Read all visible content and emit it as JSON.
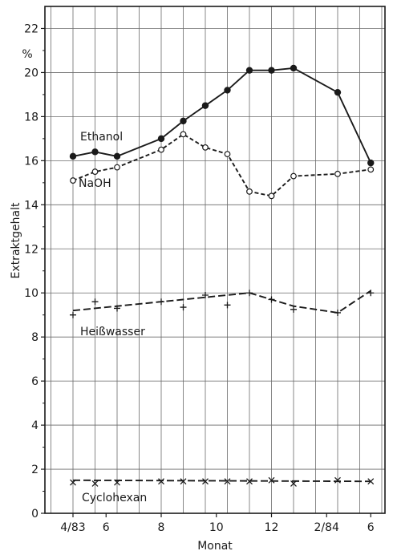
{
  "chart_data": {
    "type": "line",
    "xlabel": "Monat",
    "ylabel": "Extraktgehalt",
    "yunit": "%",
    "ylim": [
      0,
      23
    ],
    "yticks": [
      0,
      2,
      4,
      6,
      8,
      10,
      12,
      14,
      16,
      18,
      20,
      22
    ],
    "xlim": [
      0,
      15
    ],
    "xticks": [
      {
        "x": 1,
        "label": "4/83"
      },
      {
        "x": 2.5,
        "label": "6"
      },
      {
        "x": 5,
        "label": "8"
      },
      {
        "x": 7.5,
        "label": "10"
      },
      {
        "x": 10,
        "label": "12"
      },
      {
        "x": 12.5,
        "label": "2/84"
      },
      {
        "x": 14.5,
        "label": "6"
      }
    ],
    "grid": true,
    "series": [
      {
        "name": "Ethanol",
        "style": "solid",
        "marker": "filled-circle",
        "points": [
          {
            "x": 1,
            "y": 16.2
          },
          {
            "x": 2,
            "y": 16.4
          },
          {
            "x": 3,
            "y": 16.2
          },
          {
            "x": 5,
            "y": 17.0
          },
          {
            "x": 6,
            "y": 17.8
          },
          {
            "x": 7,
            "y": 18.5
          },
          {
            "x": 8,
            "y": 19.2
          },
          {
            "x": 9,
            "y": 20.1
          },
          {
            "x": 10,
            "y": 20.1
          },
          {
            "x": 11,
            "y": 20.2
          },
          {
            "x": 13,
            "y": 19.1
          },
          {
            "x": 14.5,
            "y": 15.9
          }
        ]
      },
      {
        "name": "NaOH",
        "style": "dashed",
        "marker": "open-circle",
        "points": [
          {
            "x": 1,
            "y": 15.1
          },
          {
            "x": 2,
            "y": 15.5
          },
          {
            "x": 3,
            "y": 15.7
          },
          {
            "x": 5,
            "y": 16.5
          },
          {
            "x": 6,
            "y": 17.2
          },
          {
            "x": 7,
            "y": 16.6
          },
          {
            "x": 8,
            "y": 16.3
          },
          {
            "x": 9,
            "y": 14.6
          },
          {
            "x": 10,
            "y": 14.4
          },
          {
            "x": 11,
            "y": 15.3
          },
          {
            "x": 13,
            "y": 15.4
          },
          {
            "x": 14.5,
            "y": 15.6
          }
        ]
      },
      {
        "name": "Heißwasser",
        "style": "long-dash",
        "marker": "plus",
        "points": [
          {
            "x": 1,
            "y": 9.0
          },
          {
            "x": 2,
            "y": 9.6
          },
          {
            "x": 3,
            "y": 9.3
          },
          {
            "x": 5,
            "y": 9.6
          },
          {
            "x": 6,
            "y": 9.35
          },
          {
            "x": 7,
            "y": 9.9
          },
          {
            "x": 8,
            "y": 9.45
          },
          {
            "x": 9,
            "y": 10.0
          },
          {
            "x": 10,
            "y": 9.7
          },
          {
            "x": 11,
            "y": 9.25
          },
          {
            "x": 13,
            "y": 9.1
          },
          {
            "x": 14.5,
            "y": 10.0
          }
        ],
        "curve": [
          {
            "x": 1,
            "y": 9.2
          },
          {
            "x": 9,
            "y": 10.0
          },
          {
            "x": 11,
            "y": 9.4
          },
          {
            "x": 13,
            "y": 9.1
          },
          {
            "x": 14.5,
            "y": 10.1
          }
        ]
      },
      {
        "name": "Cyclohexan",
        "style": "long-dash",
        "marker": "cross",
        "points": [
          {
            "x": 1,
            "y": 1.4
          },
          {
            "x": 2,
            "y": 1.35
          },
          {
            "x": 3,
            "y": 1.4
          },
          {
            "x": 5,
            "y": 1.45
          },
          {
            "x": 6,
            "y": 1.45
          },
          {
            "x": 7,
            "y": 1.45
          },
          {
            "x": 8,
            "y": 1.45
          },
          {
            "x": 9,
            "y": 1.45
          },
          {
            "x": 10,
            "y": 1.5
          },
          {
            "x": 11,
            "y": 1.35
          },
          {
            "x": 13,
            "y": 1.5
          },
          {
            "x": 14.5,
            "y": 1.45
          }
        ],
        "curve": [
          {
            "x": 1,
            "y": 1.5
          },
          {
            "x": 14.5,
            "y": 1.45
          }
        ]
      }
    ]
  }
}
